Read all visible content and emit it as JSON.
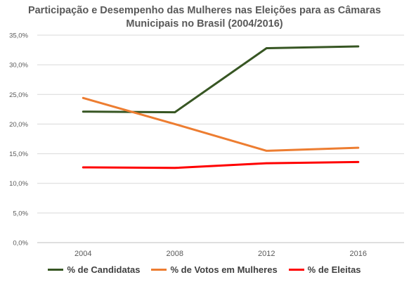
{
  "chart_data": {
    "type": "line",
    "title_lines": [
      "Participação e Desempenho das Mulheres nas Eleições para as Câmaras",
      "Municipais no Brasil (2004/2016)"
    ],
    "x": [
      "2004",
      "2008",
      "2012",
      "2016"
    ],
    "ylim": [
      0,
      35
    ],
    "yticks": [
      "0,0%",
      "5,0%",
      "10,0%",
      "15,0%",
      "20,0%",
      "25,0%",
      "30,0%",
      "35,0%"
    ],
    "grid": true,
    "legend_position": "bottom",
    "series": [
      {
        "name": "% de Candidatas",
        "color": "#375623",
        "values": [
          22.1,
          22.0,
          32.8,
          33.1
        ]
      },
      {
        "name": "% de Votos em Mulheres",
        "color": "#ED7D31",
        "values": [
          24.4,
          20.0,
          15.5,
          16.0
        ]
      },
      {
        "name": "% de Eleitas",
        "color": "#FF0000",
        "values": [
          12.7,
          12.6,
          13.4,
          13.6
        ]
      }
    ]
  }
}
